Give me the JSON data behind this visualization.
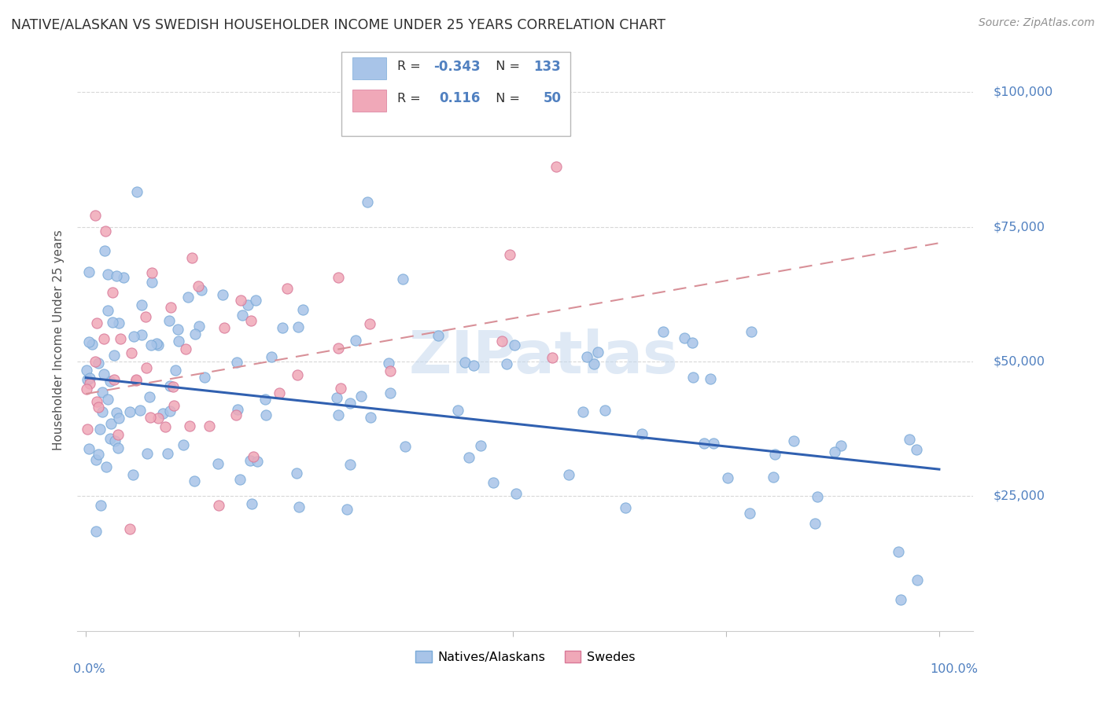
{
  "title": "NATIVE/ALASKAN VS SWEDISH HOUSEHOLDER INCOME UNDER 25 YEARS CORRELATION CHART",
  "source": "Source: ZipAtlas.com",
  "ylabel": "Householder Income Under 25 years",
  "watermark": "ZIPatlas",
  "blue_scatter": "#a8c4e8",
  "blue_edge": "#7aaad8",
  "pink_scatter": "#f0a8b8",
  "pink_edge": "#d87898",
  "blue_line": "#3060b0",
  "pink_line": "#d89098",
  "title_color": "#303030",
  "ylabel_color": "#505050",
  "right_tick_color": "#5080c0",
  "source_color": "#909090",
  "legend_R_color": "#5080c0",
  "legend_N_color": "#5080c0",
  "legend_text_color": "#303030",
  "grid_color": "#d8d8d8",
  "spine_color": "#cccccc",
  "native_R": "-0.343",
  "native_N": "133",
  "swede_R": "0.116",
  "swede_N": "50",
  "ylim_min": 0,
  "ylim_max": 108000,
  "xlim_min": -0.01,
  "xlim_max": 1.04,
  "y_ticks": [
    25000,
    50000,
    75000,
    100000
  ],
  "y_tick_labels": [
    "$25,000",
    "$50,000",
    "$75,000",
    "$100,000"
  ],
  "x_tick_positions": [
    0.0,
    0.25,
    0.5,
    0.75,
    1.0
  ],
  "native_trend_x": [
    0.0,
    1.0
  ],
  "native_trend_y": [
    47000,
    30000
  ],
  "swede_trend_x": [
    0.0,
    1.0
  ],
  "swede_trend_y": [
    44000,
    72000
  ]
}
